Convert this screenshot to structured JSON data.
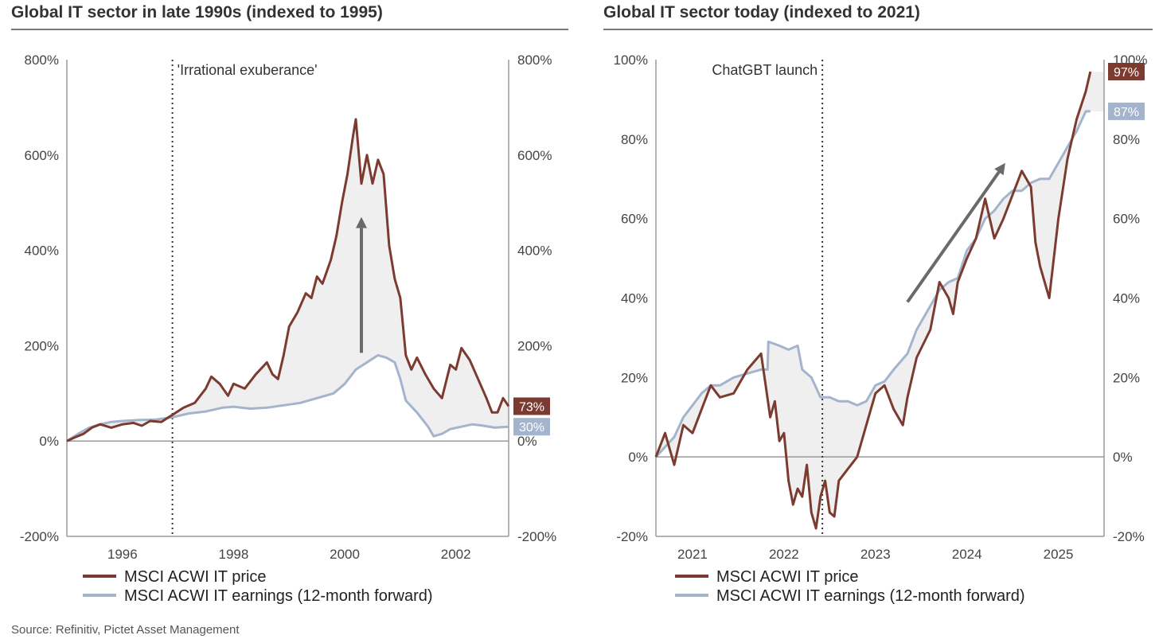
{
  "source": "Source: Refinitiv, Pictet Asset Management",
  "colors": {
    "price": "#7b3b30",
    "earnings": "#a3b4cc",
    "fill": "#efefef",
    "arrow": "#6a6a6a",
    "axis": "#9a9a9a"
  },
  "chart_data": [
    {
      "type": "line",
      "title": "Global IT sector in late 1990s (indexed to 1995)",
      "xlim": [
        1995,
        2002.95
      ],
      "x_ticks": [
        1996,
        1998,
        2000,
        2002
      ],
      "x_tick_labels": [
        "1996",
        "1998",
        "2000",
        "2002"
      ],
      "ylim": [
        -200,
        800
      ],
      "y_ticks": [
        -200,
        0,
        200,
        400,
        600,
        800
      ],
      "y_tick_labels": [
        "-200%",
        "0%",
        "200%",
        "400%",
        "600%",
        "800%"
      ],
      "y_right_tick_labels": [
        "-200%",
        "0%",
        "200%",
        "400%",
        "600%",
        "800%"
      ],
      "grid": false,
      "legend_position": "bottom-left",
      "annotation": {
        "text": "'Irrational exuberance'",
        "x": 1996.9
      },
      "arrow": {
        "x": 2000.3,
        "from": 185,
        "to": 470
      },
      "end_labels": {
        "price": "73%",
        "earnings": "30%"
      },
      "series": [
        {
          "name": "MSCI ACWI IT price",
          "points": [
            [
              1995.0,
              0
            ],
            [
              1995.15,
              8
            ],
            [
              1995.3,
              15
            ],
            [
              1995.45,
              28
            ],
            [
              1995.6,
              35
            ],
            [
              1995.8,
              28
            ],
            [
              1996.0,
              35
            ],
            [
              1996.2,
              38
            ],
            [
              1996.35,
              32
            ],
            [
              1996.5,
              42
            ],
            [
              1996.7,
              40
            ],
            [
              1996.9,
              55
            ],
            [
              1997.1,
              70
            ],
            [
              1997.3,
              80
            ],
            [
              1997.5,
              110
            ],
            [
              1997.6,
              135
            ],
            [
              1997.75,
              120
            ],
            [
              1997.9,
              95
            ],
            [
              1998.0,
              120
            ],
            [
              1998.2,
              110
            ],
            [
              1998.4,
              140
            ],
            [
              1998.6,
              165
            ],
            [
              1998.7,
              140
            ],
            [
              1998.8,
              130
            ],
            [
              1998.9,
              180
            ],
            [
              1999.0,
              240
            ],
            [
              1999.15,
              270
            ],
            [
              1999.3,
              310
            ],
            [
              1999.4,
              300
            ],
            [
              1999.5,
              345
            ],
            [
              1999.6,
              330
            ],
            [
              1999.75,
              380
            ],
            [
              1999.85,
              430
            ],
            [
              1999.95,
              500
            ],
            [
              2000.05,
              560
            ],
            [
              2000.15,
              640
            ],
            [
              2000.2,
              675
            ],
            [
              2000.3,
              540
            ],
            [
              2000.4,
              600
            ],
            [
              2000.5,
              540
            ],
            [
              2000.6,
              590
            ],
            [
              2000.7,
              560
            ],
            [
              2000.8,
              410
            ],
            [
              2000.9,
              340
            ],
            [
              2001.0,
              300
            ],
            [
              2001.1,
              180
            ],
            [
              2001.2,
              150
            ],
            [
              2001.3,
              175
            ],
            [
              2001.45,
              140
            ],
            [
              2001.6,
              110
            ],
            [
              2001.75,
              90
            ],
            [
              2001.9,
              160
            ],
            [
              2002.0,
              150
            ],
            [
              2002.1,
              195
            ],
            [
              2002.25,
              170
            ],
            [
              2002.4,
              130
            ],
            [
              2002.55,
              90
            ],
            [
              2002.65,
              60
            ],
            [
              2002.75,
              60
            ],
            [
              2002.85,
              90
            ],
            [
              2002.95,
              73
            ]
          ]
        },
        {
          "name": "MSCI ACWI IT earnings (12-month forward)",
          "points": [
            [
              1995.0,
              0
            ],
            [
              1995.2,
              15
            ],
            [
              1995.4,
              28
            ],
            [
              1995.6,
              35
            ],
            [
              1995.8,
              40
            ],
            [
              1996.0,
              42
            ],
            [
              1996.3,
              44
            ],
            [
              1996.6,
              45
            ],
            [
              1996.9,
              50
            ],
            [
              1997.2,
              58
            ],
            [
              1997.5,
              62
            ],
            [
              1997.8,
              70
            ],
            [
              1998.0,
              72
            ],
            [
              1998.3,
              68
            ],
            [
              1998.6,
              70
            ],
            [
              1998.9,
              75
            ],
            [
              1999.2,
              80
            ],
            [
              1999.5,
              90
            ],
            [
              1999.8,
              100
            ],
            [
              2000.0,
              120
            ],
            [
              2000.2,
              150
            ],
            [
              2000.4,
              165
            ],
            [
              2000.6,
              180
            ],
            [
              2000.75,
              175
            ],
            [
              2000.9,
              165
            ],
            [
              2001.0,
              130
            ],
            [
              2001.1,
              85
            ],
            [
              2001.3,
              60
            ],
            [
              2001.5,
              30
            ],
            [
              2001.6,
              10
            ],
            [
              2001.75,
              15
            ],
            [
              2001.9,
              25
            ],
            [
              2002.1,
              30
            ],
            [
              2002.3,
              35
            ],
            [
              2002.5,
              32
            ],
            [
              2002.7,
              28
            ],
            [
              2002.95,
              30
            ]
          ]
        }
      ]
    },
    {
      "type": "line",
      "title": "Global IT sector today (indexed to 2021)",
      "xlim": [
        2020.6,
        2025.5
      ],
      "x_ticks": [
        2021,
        2022,
        2023,
        2024,
        2025
      ],
      "x_tick_labels": [
        "2021",
        "2022",
        "2023",
        "2024",
        "2025"
      ],
      "ylim": [
        -20,
        100
      ],
      "y_ticks": [
        -20,
        0,
        20,
        40,
        60,
        80,
        100
      ],
      "y_tick_labels": [
        "-20%",
        "0%",
        "20%",
        "40%",
        "60%",
        "80%",
        "100%"
      ],
      "y_right_tick_labels": [
        "-20%",
        "0%",
        "20%",
        "40%",
        "60%",
        "80%",
        "100%"
      ],
      "grid": false,
      "legend_position": "bottom-left",
      "annotation": {
        "text": "ChatGBT launch",
        "x": 2022.42
      },
      "arrow": {
        "x_from": 2023.35,
        "y_from": 39,
        "x_to": 2024.42,
        "y_to": 74
      },
      "end_labels": {
        "price": "97%",
        "earnings": "87%"
      },
      "series": [
        {
          "name": "MSCI ACWI IT price",
          "points": [
            [
              2020.6,
              0
            ],
            [
              2020.7,
              6
            ],
            [
              2020.8,
              -2
            ],
            [
              2020.9,
              8
            ],
            [
              2021.0,
              6
            ],
            [
              2021.1,
              12
            ],
            [
              2021.2,
              18
            ],
            [
              2021.3,
              15
            ],
            [
              2021.45,
              16
            ],
            [
              2021.6,
              22
            ],
            [
              2021.75,
              26
            ],
            [
              2021.8,
              18
            ],
            [
              2021.85,
              10
            ],
            [
              2021.9,
              14
            ],
            [
              2021.95,
              4
            ],
            [
              2022.0,
              6
            ],
            [
              2022.05,
              -6
            ],
            [
              2022.1,
              -12
            ],
            [
              2022.15,
              -8
            ],
            [
              2022.2,
              -10
            ],
            [
              2022.25,
              -2
            ],
            [
              2022.3,
              -14
            ],
            [
              2022.35,
              -18
            ],
            [
              2022.4,
              -10
            ],
            [
              2022.45,
              -6
            ],
            [
              2022.5,
              -14
            ],
            [
              2022.55,
              -15
            ],
            [
              2022.6,
              -6
            ],
            [
              2022.7,
              -3
            ],
            [
              2022.8,
              0
            ],
            [
              2022.9,
              8
            ],
            [
              2023.0,
              16
            ],
            [
              2023.1,
              18
            ],
            [
              2023.2,
              12
            ],
            [
              2023.3,
              8
            ],
            [
              2023.35,
              15
            ],
            [
              2023.45,
              25
            ],
            [
              2023.6,
              32
            ],
            [
              2023.7,
              44
            ],
            [
              2023.8,
              40
            ],
            [
              2023.85,
              36
            ],
            [
              2023.9,
              44
            ],
            [
              2024.0,
              50
            ],
            [
              2024.1,
              55
            ],
            [
              2024.2,
              65
            ],
            [
              2024.3,
              55
            ],
            [
              2024.4,
              60
            ],
            [
              2024.5,
              66
            ],
            [
              2024.6,
              72
            ],
            [
              2024.7,
              68
            ],
            [
              2024.75,
              54
            ],
            [
              2024.8,
              48
            ],
            [
              2024.9,
              40
            ],
            [
              2025.0,
              60
            ],
            [
              2025.1,
              75
            ],
            [
              2025.2,
              85
            ],
            [
              2025.3,
              92
            ],
            [
              2025.35,
              97
            ]
          ]
        },
        {
          "name": "MSCI ACWI IT earnings (12-month forward)",
          "points": [
            [
              2020.6,
              0
            ],
            [
              2020.8,
              5
            ],
            [
              2020.9,
              10
            ],
            [
              2021.0,
              13
            ],
            [
              2021.1,
              16
            ],
            [
              2021.2,
              18
            ],
            [
              2021.3,
              18
            ],
            [
              2021.45,
              20
            ],
            [
              2021.6,
              21
            ],
            [
              2021.75,
              22
            ],
            [
              2021.82,
              22
            ],
            [
              2021.83,
              29
            ],
            [
              2021.95,
              28
            ],
            [
              2022.05,
              27
            ],
            [
              2022.15,
              28
            ],
            [
              2022.2,
              22
            ],
            [
              2022.3,
              20
            ],
            [
              2022.4,
              15
            ],
            [
              2022.5,
              15
            ],
            [
              2022.6,
              14
            ],
            [
              2022.7,
              14
            ],
            [
              2022.8,
              13
            ],
            [
              2022.9,
              14
            ],
            [
              2023.0,
              18
            ],
            [
              2023.1,
              19
            ],
            [
              2023.2,
              22
            ],
            [
              2023.35,
              26
            ],
            [
              2023.45,
              32
            ],
            [
              2023.6,
              38
            ],
            [
              2023.7,
              42
            ],
            [
              2023.8,
              44
            ],
            [
              2023.9,
              45
            ],
            [
              2024.0,
              52
            ],
            [
              2024.1,
              55
            ],
            [
              2024.2,
              60
            ],
            [
              2024.3,
              62
            ],
            [
              2024.4,
              65
            ],
            [
              2024.5,
              67
            ],
            [
              2024.6,
              67
            ],
            [
              2024.7,
              69
            ],
            [
              2024.8,
              70
            ],
            [
              2024.9,
              70
            ],
            [
              2025.0,
              74
            ],
            [
              2025.1,
              78
            ],
            [
              2025.2,
              82
            ],
            [
              2025.3,
              87
            ],
            [
              2025.35,
              87
            ]
          ]
        }
      ]
    }
  ]
}
